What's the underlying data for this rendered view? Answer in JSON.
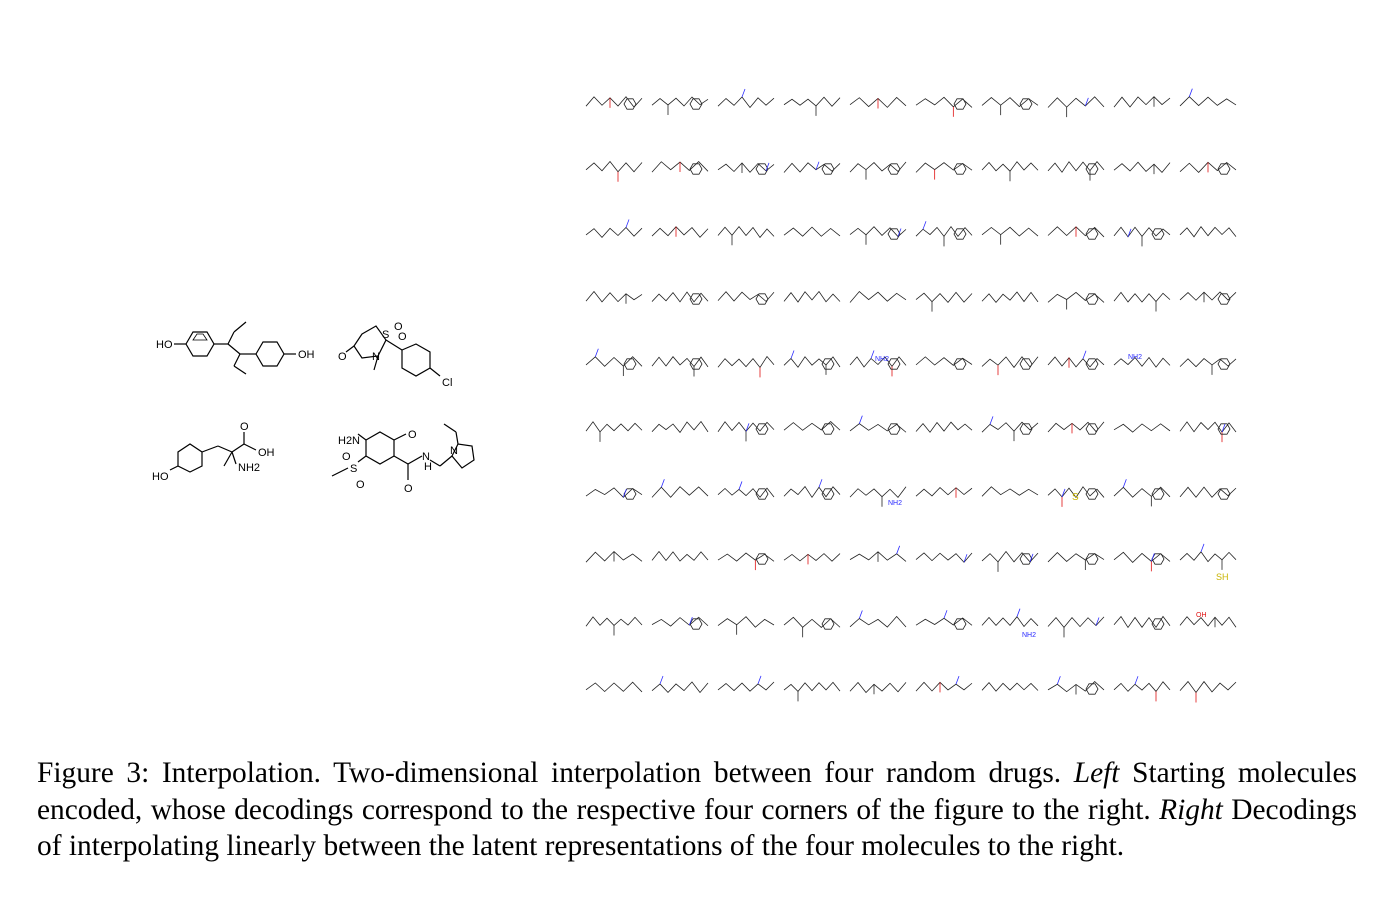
{
  "figure": {
    "caption_label": "Figure 3:",
    "caption_title": "Interpolation.",
    "caption_text_1": " Two-dimensional interpolation between four random drugs. ",
    "caption_left": "Left",
    "caption_text_2": " Starting molecules encoded, whose decodings correspond to the respective four corners of the figure to the right. ",
    "caption_right": "Right",
    "caption_text_3": " Decodings of interpolating linearly between the latent representations of the four molecules to the right."
  },
  "start_molecules": {
    "m1": {
      "atom_labels": [
        "HO",
        "OH"
      ]
    },
    "m2": {
      "atom_labels": [
        "S",
        "O",
        "O",
        "O",
        "N",
        "Cl"
      ]
    },
    "m3": {
      "atom_labels": [
        "O",
        "OH",
        "NH2",
        "HO"
      ]
    },
    "m4": {
      "atom_labels": [
        "H2N",
        "O",
        "S",
        "O",
        "O",
        "N",
        "H",
        "O",
        "N"
      ]
    }
  },
  "grid": {
    "rows": 10,
    "cols": 10,
    "visible_atom_labels": [
      "NH2",
      "NH2",
      "SH",
      "OH",
      "S",
      "NH2",
      "NH2"
    ]
  }
}
